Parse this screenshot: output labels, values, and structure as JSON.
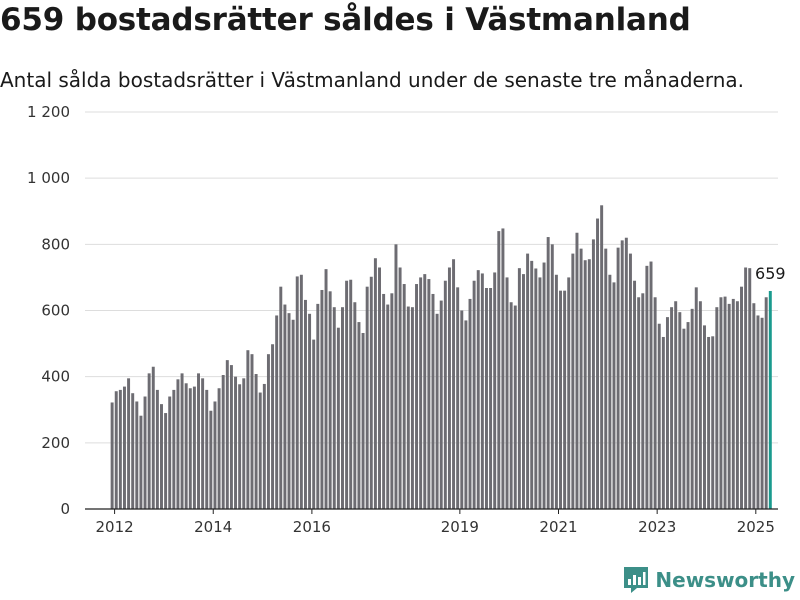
{
  "header": {
    "title": "659 bostadsrätter såldes i Västmanland",
    "subtitle": "Antal sålda bostadsrätter i Västmanland under de senaste tre månaderna."
  },
  "brand": {
    "name": "Newsworthy",
    "icon": "newsworthy-logo-icon",
    "color": "#3c8f88"
  },
  "colors": {
    "bar": "#6d6c72",
    "highlight": "#1a9a8e",
    "grid": "#dddddd"
  },
  "chart_data": {
    "type": "bar",
    "ylim": [
      0,
      1200
    ],
    "yticks": [
      0,
      200,
      400,
      600,
      800,
      1000,
      1200
    ],
    "ytick_labels": [
      "0",
      "200",
      "400",
      "600",
      "800",
      "1 000",
      "1 200"
    ],
    "xticks": [
      2012,
      2014,
      2016,
      2019,
      2021,
      2023,
      2025
    ],
    "xlim": [
      2011.4,
      2025.45
    ],
    "x_start": 2011.95,
    "x_step": 0.0834,
    "values": [
      322,
      356,
      360,
      370,
      395,
      350,
      325,
      282,
      340,
      410,
      430,
      360,
      317,
      290,
      340,
      360,
      392,
      410,
      380,
      365,
      370,
      410,
      395,
      360,
      297,
      325,
      365,
      405,
      450,
      435,
      400,
      377,
      395,
      480,
      468,
      408,
      352,
      378,
      468,
      498,
      585,
      672,
      618,
      592,
      572,
      703,
      708,
      632,
      590,
      512,
      620,
      662,
      725,
      658,
      610,
      548,
      610,
      690,
      693,
      625,
      565,
      532,
      672,
      702,
      758,
      730,
      650,
      618,
      652,
      800,
      730,
      680,
      612,
      610,
      680,
      700,
      710,
      695,
      650,
      590,
      630,
      690,
      730,
      755,
      670,
      600,
      570,
      635,
      690,
      722,
      712,
      668,
      668,
      715,
      840,
      848,
      700,
      625,
      615,
      728,
      710,
      772,
      750,
      727,
      700,
      745,
      822,
      800,
      708,
      660,
      660,
      700,
      772,
      835,
      787,
      752,
      755,
      815,
      878,
      918,
      787,
      708,
      685,
      790,
      812,
      820,
      772,
      690,
      640,
      652,
      735,
      748,
      640,
      560,
      520,
      580,
      610,
      628,
      595,
      545,
      565,
      605,
      670,
      628,
      555,
      520,
      522,
      610,
      640,
      642,
      620,
      635,
      628,
      672,
      730,
      728,
      622,
      585,
      578,
      640,
      659
    ],
    "highlight_last": true,
    "last_label": "659"
  }
}
